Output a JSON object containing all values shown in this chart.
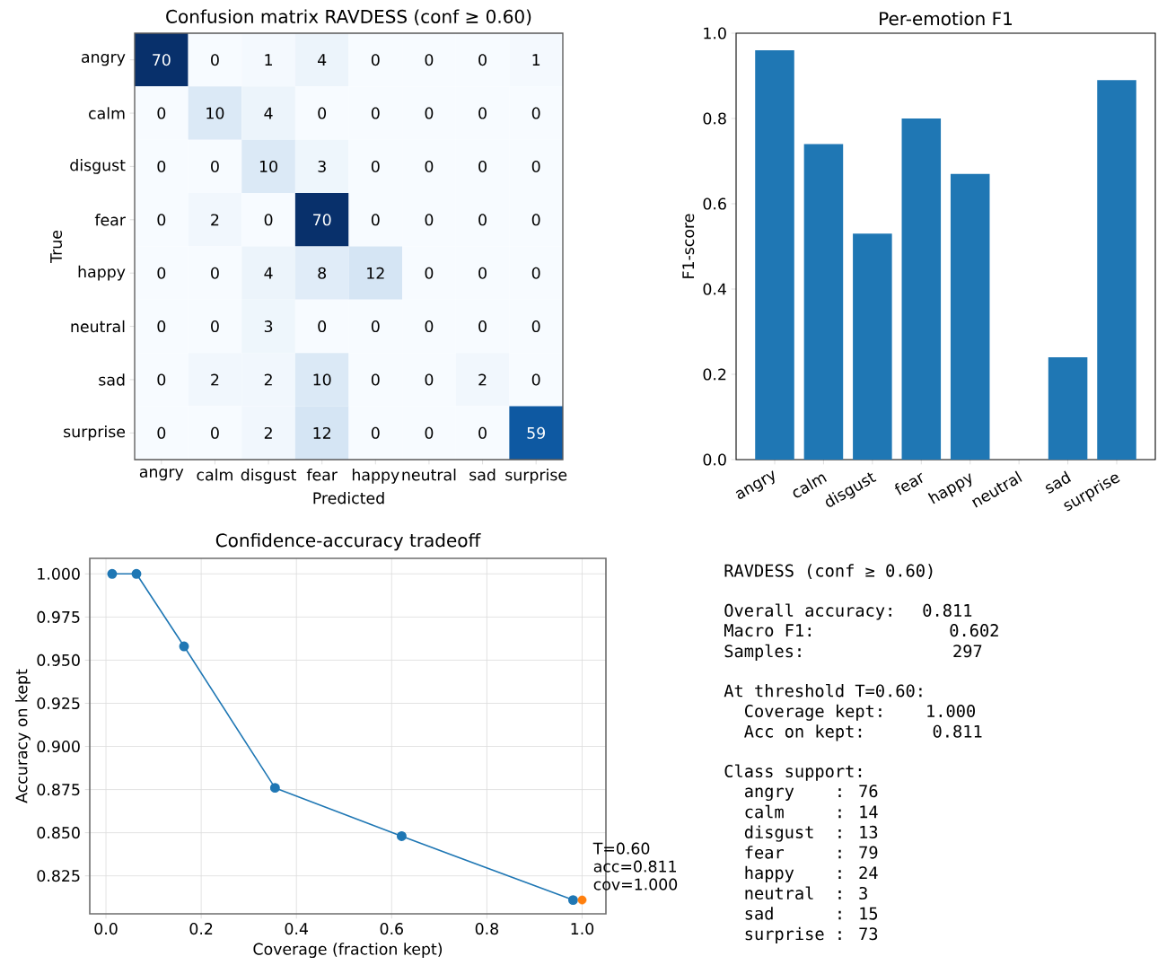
{
  "chart_data": [
    {
      "type": "heatmap",
      "title": "Confusion matrix RAVDESS (conf ≥ 0.60)",
      "xlabel": "Predicted",
      "ylabel": "True",
      "categories": [
        "angry",
        "calm",
        "disgust",
        "fear",
        "happy",
        "neutral",
        "sad",
        "surprise"
      ],
      "data_labels": true,
      "y_categories": [
        "angry",
        "calm",
        "disgust",
        "fear",
        "happy",
        "neutral",
        "sad",
        "surprise"
      ],
      "cells": [
        [
          70,
          0,
          1,
          4,
          0,
          0,
          0,
          1
        ],
        [
          0,
          10,
          4,
          0,
          0,
          0,
          0,
          0
        ],
        [
          0,
          0,
          10,
          3,
          0,
          0,
          0,
          0
        ],
        [
          0,
          2,
          0,
          70,
          0,
          0,
          0,
          0
        ],
        [
          0,
          0,
          4,
          8,
          12,
          0,
          0,
          0
        ],
        [
          0,
          0,
          3,
          0,
          0,
          0,
          0,
          0
        ],
        [
          0,
          2,
          2,
          10,
          0,
          0,
          2,
          0
        ],
        [
          0,
          0,
          2,
          12,
          0,
          0,
          0,
          59
        ]
      ]
    },
    {
      "type": "bar",
      "title": "Per-emotion F1",
      "ylabel": "F1-score",
      "color": "#1f77b4",
      "categories": [
        "angry",
        "calm",
        "disgust",
        "fear",
        "happy",
        "neutral",
        "sad",
        "surprise"
      ],
      "values": [
        0.96,
        0.74,
        0.53,
        0.8,
        0.67,
        0.0,
        0.24,
        0.89
      ],
      "ylim": [
        0,
        1.0
      ],
      "yticks": [
        {
          "value": 0,
          "label": "0.0"
        },
        {
          "value": 0.2,
          "label": "0.2"
        },
        {
          "value": 0.4,
          "label": "0.4"
        },
        {
          "value": 0.6,
          "label": "0.6"
        },
        {
          "value": 0.8,
          "label": "0.8"
        },
        {
          "value": 1.0,
          "label": "1.0"
        }
      ]
    },
    {
      "type": "line",
      "title": "Confidence-accuracy tradeoff",
      "xlabel": "Coverage (fraction kept)",
      "ylabel": "Accuracy on kept",
      "grid": true,
      "marker": "circle",
      "series": [
        {
          "type": "line",
          "color": "#1f77b4",
          "x": [
            0.013,
            0.064,
            0.164,
            0.355,
            0.621,
            0.981
          ],
          "values": [
            1.0,
            1.0,
            0.958,
            0.876,
            0.848,
            0.811
          ]
        },
        {
          "type": "scatter",
          "color": "#ff7f0e",
          "x": [
            1.0
          ],
          "values": [
            0.811
          ]
        }
      ],
      "xlim": [
        -0.034,
        1.05
      ],
      "ylim": [
        0.803,
        1.009
      ],
      "xticks": [
        {
          "value": 0,
          "label": "0.0"
        },
        {
          "value": 0.2,
          "label": "0.2"
        },
        {
          "value": 0.4,
          "label": "0.4"
        },
        {
          "value": 0.6,
          "label": "0.6"
        },
        {
          "value": 0.8,
          "label": "0.8"
        },
        {
          "value": 1.0,
          "label": "1.0"
        }
      ],
      "yticks": [
        {
          "value": 0.825,
          "label": "0.825"
        },
        {
          "value": 0.85,
          "label": "0.850"
        },
        {
          "value": 0.875,
          "label": "0.875"
        },
        {
          "value": 0.9,
          "label": "0.900"
        },
        {
          "value": 0.925,
          "label": "0.925"
        },
        {
          "value": 0.95,
          "label": "0.950"
        },
        {
          "value": 0.975,
          "label": "0.975"
        },
        {
          "value": 1.0,
          "label": "1.000"
        }
      ],
      "annotations": [
        "T=0.60",
        "acc=0.811",
        "cov=1.000"
      ]
    },
    {
      "type": "other",
      "title": "RAVDESS (conf ≥ 0.60)",
      "annotations": [
        "Overall accuracy:  0.811",
        "Macro F1:          0.602",
        "Samples:           297",
        "At threshold T=0.60:",
        "  Coverage kept:   1.000",
        "  Acc on kept:     0.811",
        "Class support:",
        "  angry    : 76",
        "  calm     : 14",
        "  disgust  : 13",
        "  fear     : 79",
        "  happy    : 24",
        "  neutral  : 3",
        "  sad      : 15",
        "  surprise : 73"
      ]
    }
  ]
}
